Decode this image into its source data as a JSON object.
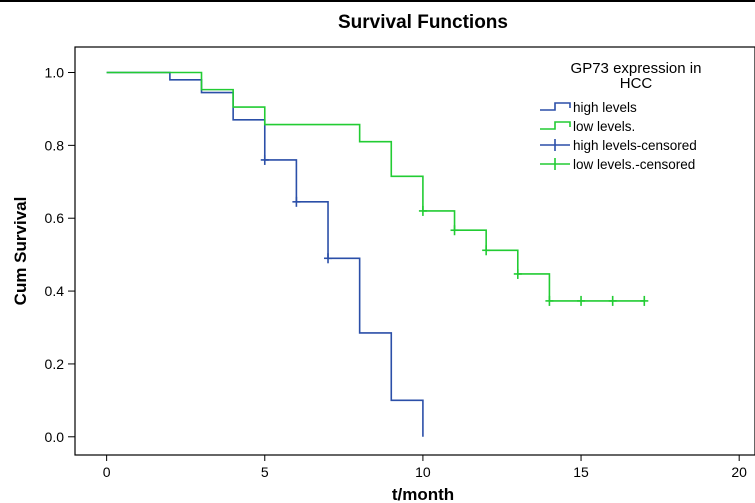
{
  "chart_data": {
    "type": "line",
    "step": true,
    "title": "Survival Functions",
    "xlabel": "t/month",
    "ylabel": "Cum Survival",
    "xlim": [
      -1,
      20.5
    ],
    "ylim": [
      -0.05,
      1.07
    ],
    "xticks": [
      0,
      5,
      10,
      15,
      20
    ],
    "yticks": [
      0.0,
      0.2,
      0.4,
      0.6,
      0.8,
      1.0
    ],
    "xtick_labels": [
      "0",
      "5",
      "10",
      "15",
      "20"
    ],
    "ytick_labels": [
      "0.0",
      "0.2",
      "0.4",
      "0.6",
      "0.8",
      "1.0"
    ],
    "grid": false,
    "legend": {
      "position": "top-right",
      "title": [
        "GP73 expression in",
        "HCC"
      ],
      "entries": [
        {
          "label": "high levels",
          "color": "#2b4fa8",
          "kind": "step"
        },
        {
          "label": "low levels.",
          "color": "#22cc33",
          "kind": "step"
        },
        {
          "label": "high levels-censored",
          "color": "#2b4fa8",
          "kind": "censor"
        },
        {
          "label": "low levels.-censored",
          "color": "#22cc33",
          "kind": "censor"
        }
      ]
    },
    "series": [
      {
        "name": "high levels",
        "color": "#2b4fa8",
        "steps": [
          [
            0,
            1.0
          ],
          [
            2,
            0.98
          ],
          [
            3,
            0.945
          ],
          [
            4,
            0.87
          ],
          [
            5,
            0.76
          ],
          [
            6,
            0.645
          ],
          [
            7,
            0.49
          ],
          [
            8,
            0.285
          ],
          [
            9,
            0.1
          ],
          [
            10,
            0.0
          ]
        ],
        "censored": [
          [
            5,
            0.76
          ],
          [
            6,
            0.645
          ],
          [
            7,
            0.49
          ]
        ]
      },
      {
        "name": "low levels.",
        "color": "#22cc33",
        "steps": [
          [
            0,
            1.0
          ],
          [
            3,
            0.953
          ],
          [
            4,
            0.905
          ],
          [
            5,
            0.857
          ],
          [
            8,
            0.81
          ],
          [
            9,
            0.715
          ],
          [
            10,
            0.62
          ],
          [
            11,
            0.567
          ],
          [
            12,
            0.512
          ],
          [
            13,
            0.447
          ],
          [
            14,
            0.373
          ]
        ],
        "end_x": 17,
        "censored": [
          [
            10,
            0.62
          ],
          [
            11,
            0.567
          ],
          [
            12,
            0.512
          ],
          [
            13,
            0.447
          ],
          [
            14,
            0.373
          ],
          [
            15,
            0.373
          ],
          [
            16,
            0.373
          ],
          [
            17,
            0.373
          ]
        ]
      }
    ]
  }
}
